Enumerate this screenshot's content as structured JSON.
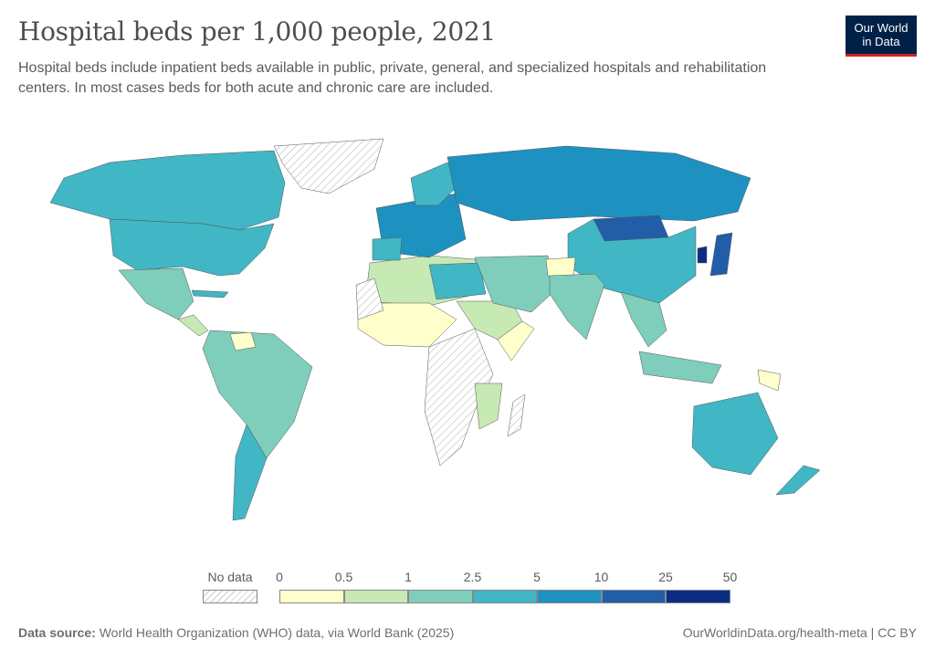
{
  "title": "Hospital beds per 1,000 people, 2021",
  "subtitle": "Hospital beds include inpatient beds available in public, private, general, and specialized hospitals and rehabilitation centers. In most cases beds for both acute and chronic care are included.",
  "logo": {
    "line1": "Our World",
    "line2": "in Data",
    "bg": "#002147",
    "accent": "#ce261e"
  },
  "legend": {
    "no_data_label": "No data",
    "ticks": [
      "0",
      "0.5",
      "1",
      "2.5",
      "5",
      "10",
      "25",
      "50"
    ],
    "bins": [
      {
        "range": "0–0.5",
        "color": "#ffffcc"
      },
      {
        "range": "0.5–1",
        "color": "#c7e9b4"
      },
      {
        "range": "1–2.5",
        "color": "#7fcdbb"
      },
      {
        "range": "2.5–5",
        "color": "#41b6c4"
      },
      {
        "range": "5–10",
        "color": "#1d91c0"
      },
      {
        "range": "10–25",
        "color": "#225ea8"
      },
      {
        "range": "25–50",
        "color": "#0c2c84"
      }
    ]
  },
  "footer": {
    "source_label": "Data source:",
    "source_text": "World Health Organization (WHO) data, via World Bank (2025)",
    "link": "OurWorldinData.org/health-meta",
    "license": "CC BY"
  }
}
